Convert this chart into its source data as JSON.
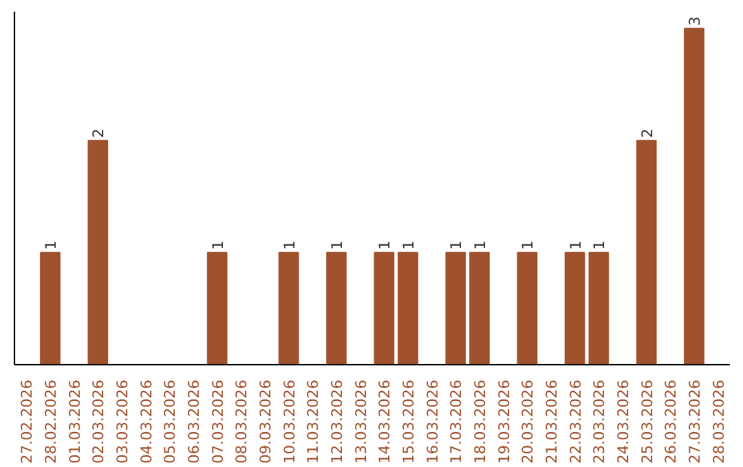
{
  "chart_data": {
    "type": "bar",
    "color": "#a0522d",
    "grid": false,
    "tick_labels": "x",
    "categories": [
      "27.02.2026",
      "28.02.2026",
      "01.03.2026",
      "02.03.2026",
      "03.03.2026",
      "04.03.2026",
      "05.03.2026",
      "06.03.2026",
      "07.03.2026",
      "08.03.2026",
      "09.03.2026",
      "10.03.2026",
      "11.03.2026",
      "12.03.2026",
      "13.03.2026",
      "14.03.2026",
      "15.03.2026",
      "16.03.2026",
      "17.03.2026",
      "18.03.2026",
      "19.03.2026",
      "20.03.2026",
      "21.03.2026",
      "22.03.2026",
      "23.03.2026",
      "24.03.2026",
      "25.03.2026",
      "26.03.2026",
      "27.03.2026",
      "28.03.2026"
    ],
    "values": [
      0,
      1,
      0,
      2,
      0,
      0,
      0,
      0,
      1,
      0,
      0,
      1,
      0,
      1,
      0,
      1,
      1,
      0,
      1,
      1,
      0,
      1,
      0,
      1,
      1,
      0,
      2,
      0,
      3,
      0
    ],
    "value_labels": [
      null,
      "1",
      null,
      "2",
      null,
      null,
      null,
      null,
      "1",
      null,
      null,
      "1",
      null,
      "1",
      null,
      "1",
      "1",
      null,
      "1",
      "1",
      null,
      "1",
      null,
      "1",
      "1",
      null,
      "2",
      null,
      "3",
      null
    ]
  }
}
